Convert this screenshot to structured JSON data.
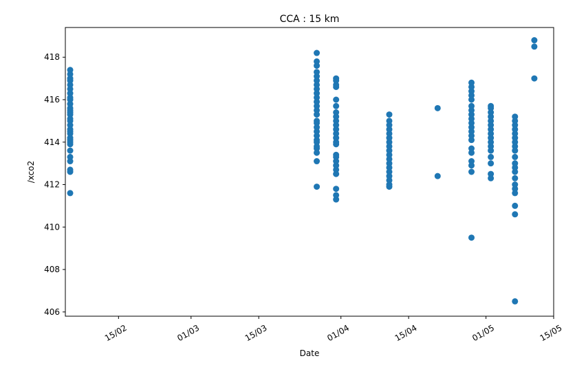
{
  "chart_data": {
    "type": "scatter",
    "title": "CCA : 15 km",
    "xlabel": "Date",
    "ylabel": "/xco2",
    "x_axis": "date",
    "year": 2020,
    "xlim": [
      "2020-02-04",
      "2020-05-15"
    ],
    "ylim": [
      405.8,
      419.4
    ],
    "x_ticks": [
      {
        "date": "2020-02-15",
        "label": "15/02"
      },
      {
        "date": "2020-03-01",
        "label": "01/03"
      },
      {
        "date": "2020-03-15",
        "label": "15/03"
      },
      {
        "date": "2020-04-01",
        "label": "01/04"
      },
      {
        "date": "2020-04-15",
        "label": "15/04"
      },
      {
        "date": "2020-05-01",
        "label": "01/05"
      },
      {
        "date": "2020-05-15",
        "label": "15/05"
      }
    ],
    "y_ticks": [
      406,
      408,
      410,
      412,
      414,
      416,
      418
    ],
    "color": "#1f77b4",
    "series": [
      {
        "x": "2020-02-05",
        "y": [
          411.6,
          412.6,
          412.7,
          413.1,
          413.3,
          413.6,
          413.9,
          414.0,
          414.1,
          414.2,
          414.4,
          414.5,
          414.6,
          414.8,
          415.0,
          415.1,
          415.3,
          415.4,
          415.5,
          415.6,
          415.8,
          416.0,
          416.1,
          416.3,
          416.5,
          416.7,
          416.9,
          417.0,
          417.2,
          417.4
        ]
      },
      {
        "x": "2020-03-27",
        "y": [
          411.9,
          413.1,
          413.5,
          413.7,
          413.8,
          414.0,
          414.1,
          414.3,
          414.5,
          414.7,
          414.9,
          415.0,
          415.3,
          415.5,
          415.7,
          415.9,
          416.1,
          416.3,
          416.5,
          416.7,
          416.9,
          417.1,
          417.3,
          417.6,
          417.8,
          418.2
        ]
      },
      {
        "x": "2020-03-31",
        "y": [
          411.3,
          411.5,
          411.8,
          412.5,
          412.7,
          412.9,
          413.1,
          413.3,
          413.4,
          413.9,
          414.0,
          414.2,
          414.4,
          414.6,
          414.8,
          415.0,
          415.2,
          415.4,
          415.7,
          416.0,
          416.6,
          416.7,
          416.9,
          417.0
        ]
      },
      {
        "x": "2020-04-11",
        "y": [
          411.9,
          412.0,
          412.2,
          412.4,
          412.6,
          412.8,
          413.0,
          413.2,
          413.4,
          413.6,
          413.8,
          414.0,
          414.2,
          414.4,
          414.6,
          414.8,
          415.0,
          415.3
        ]
      },
      {
        "x": "2020-04-21",
        "y": [
          412.4,
          415.6
        ]
      },
      {
        "x": "2020-04-28",
        "y": [
          409.5,
          412.6,
          412.9,
          413.1,
          413.5,
          413.7,
          414.1,
          414.3,
          414.5,
          414.7,
          414.9,
          415.1,
          415.3,
          415.5,
          415.7,
          416.0,
          416.2,
          416.4,
          416.6,
          416.8
        ]
      },
      {
        "x": "2020-05-02",
        "y": [
          412.3,
          412.5,
          413.0,
          413.3,
          413.6,
          413.8,
          414.0,
          414.2,
          414.4,
          414.6,
          414.8,
          415.0,
          415.2,
          415.4,
          415.6,
          415.7
        ]
      },
      {
        "x": "2020-05-07",
        "y": [
          406.5,
          410.6,
          411.0,
          411.6,
          411.8,
          412.0,
          412.3,
          412.6,
          412.8,
          413.0,
          413.3,
          413.6,
          413.8,
          414.0,
          414.2,
          414.4,
          414.6,
          414.8,
          415.0,
          415.2
        ]
      },
      {
        "x": "2020-05-11",
        "y": [
          417.0,
          418.5,
          418.8
        ]
      }
    ]
  }
}
